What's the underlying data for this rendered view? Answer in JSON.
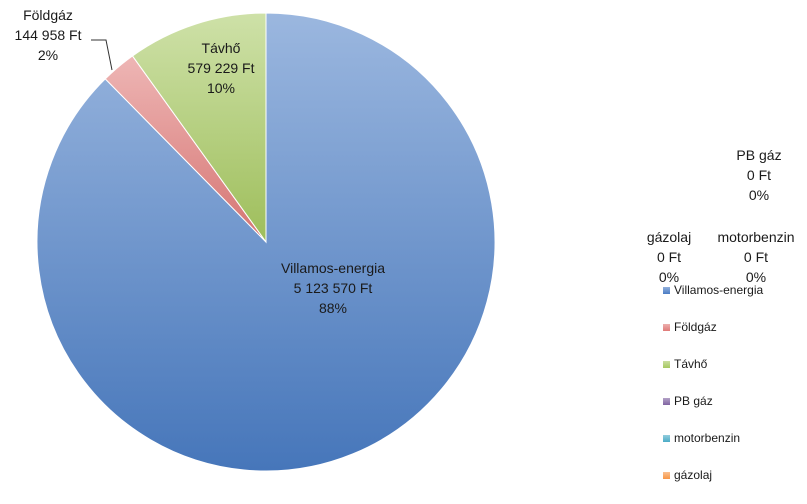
{
  "chart_data": {
    "type": "pie",
    "title": "",
    "slices": [
      {
        "name": "Villamos-energia",
        "value": 5123570,
        "value_label": "5 123 570 Ft",
        "percent_label": "88%",
        "color": "#4a7cc4"
      },
      {
        "name": "Földgáz",
        "value": 144958,
        "value_label": "144 958 Ft",
        "percent_label": "2%",
        "color": "#e07a78"
      },
      {
        "name": "Távhő",
        "value": 579229,
        "value_label": "579 229 Ft",
        "percent_label": "10%",
        "color": "#a6c860"
      },
      {
        "name": "PB gáz",
        "value": 0,
        "value_label": "0 Ft",
        "percent_label": "0%",
        "color": "#8064a2"
      },
      {
        "name": "motorbenzin",
        "value": 0,
        "value_label": "0 Ft",
        "percent_label": "0%",
        "color": "#4bacc6"
      },
      {
        "name": "gázolaj",
        "value": 0,
        "value_label": "0 Ft",
        "percent_label": "0%",
        "color": "#f79646"
      }
    ],
    "legend_position": "right"
  }
}
